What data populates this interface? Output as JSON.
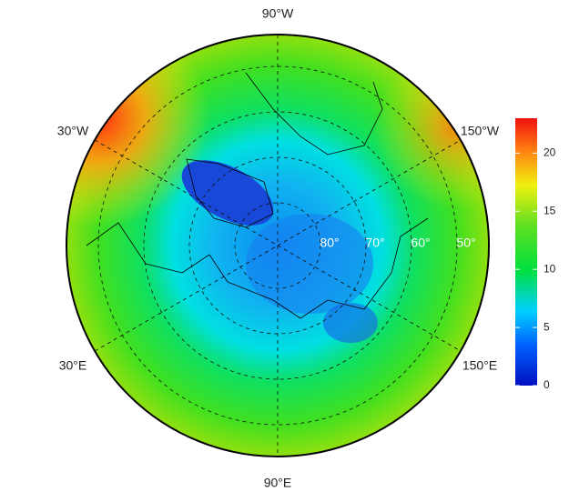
{
  "map": {
    "longitude_labels": [
      "90°W",
      "30°W",
      "150°W",
      "30°E",
      "150°E",
      "90°E"
    ],
    "latitude_labels": [
      "80°",
      "70°",
      "60°",
      "50°"
    ]
  },
  "colorbar": {
    "lim": [
      0,
      23
    ],
    "ticks": [
      0,
      5,
      10,
      15,
      20
    ]
  }
}
